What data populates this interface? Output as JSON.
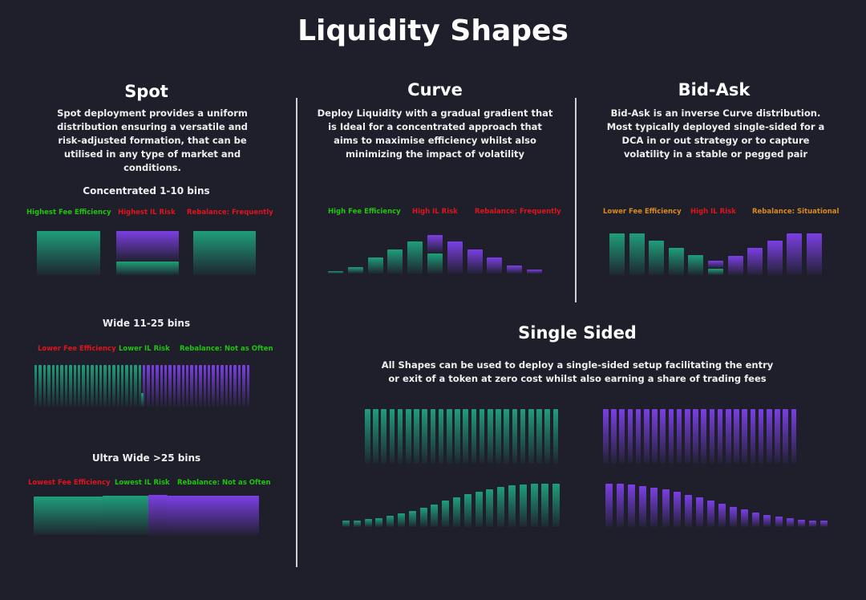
{
  "title": "Liquidity Shapes",
  "colors": {
    "background": "#1e1f2b",
    "green_bar": "#1f9e7a",
    "purple_bar": "#7b3fe4",
    "good": "#22c40f",
    "bad": "#e0141c",
    "neutral": "#d88a1c"
  },
  "spot": {
    "heading": "Spot",
    "description": "Spot deployment provides a uniform distribution ensuring a versatile and risk-adjusted formation, that can be utilised in any type of market and conditions.",
    "concentrated": {
      "title": "Concentrated 1-10 bins",
      "labels": [
        {
          "text": "Highest Fee Efficiency",
          "tone": "good"
        },
        {
          "text": "Highest IL Risk",
          "tone": "bad"
        },
        {
          "text": "Rebalance: Frequently",
          "tone": "bad"
        }
      ]
    },
    "wide": {
      "title": "Wide 11-25 bins",
      "labels": [
        {
          "text": "Lower Fee Efficiency",
          "tone": "bad"
        },
        {
          "text": "Lower IL Risk",
          "tone": "good"
        },
        {
          "text": "Rebalance: Not as Often",
          "tone": "good"
        }
      ]
    },
    "ultra_wide": {
      "title": "Ultra Wide >25 bins",
      "labels": [
        {
          "text": "Lowest Fee Efficiency",
          "tone": "bad"
        },
        {
          "text": "Lowest IL Risk",
          "tone": "good"
        },
        {
          "text": "Rebalance: Not as Often",
          "tone": "good"
        }
      ]
    }
  },
  "curve": {
    "heading": "Curve",
    "description": "Deploy Liquidity with a gradual gradient that is Ideal for a concentrated approach that aims to maximise efficiency whilst also minimizing the impact of volatility",
    "labels": [
      {
        "text": "High Fee Efficiency",
        "tone": "good"
      },
      {
        "text": "High IL Risk",
        "tone": "bad"
      },
      {
        "text": "Rebalance: Frequently",
        "tone": "bad"
      }
    ],
    "bars": [
      3,
      8,
      20,
      30,
      40,
      48,
      40,
      30,
      20,
      10,
      5
    ]
  },
  "bid_ask": {
    "heading": "Bid-Ask",
    "description": "Bid-Ask is an inverse Curve distribution. Most typically deployed single-sided for a DCA in or out strategy or to capture volatility in a stable or pegged pair",
    "labels": [
      {
        "text": "Lower Fee Efficiency",
        "tone": "neutral"
      },
      {
        "text": "High IL Risk",
        "tone": "bad"
      },
      {
        "text": "Rebalance: Situational",
        "tone": "neutral"
      }
    ],
    "bars": [
      52,
      52,
      43,
      34,
      25,
      18,
      24,
      34,
      43,
      52,
      52
    ]
  },
  "single_sided": {
    "heading": "Single Sided",
    "description": "All Shapes can be used to deploy a single-sided setup facilitating the entry or exit of a token at zero cost whilst also earning a share of trading fees"
  }
}
